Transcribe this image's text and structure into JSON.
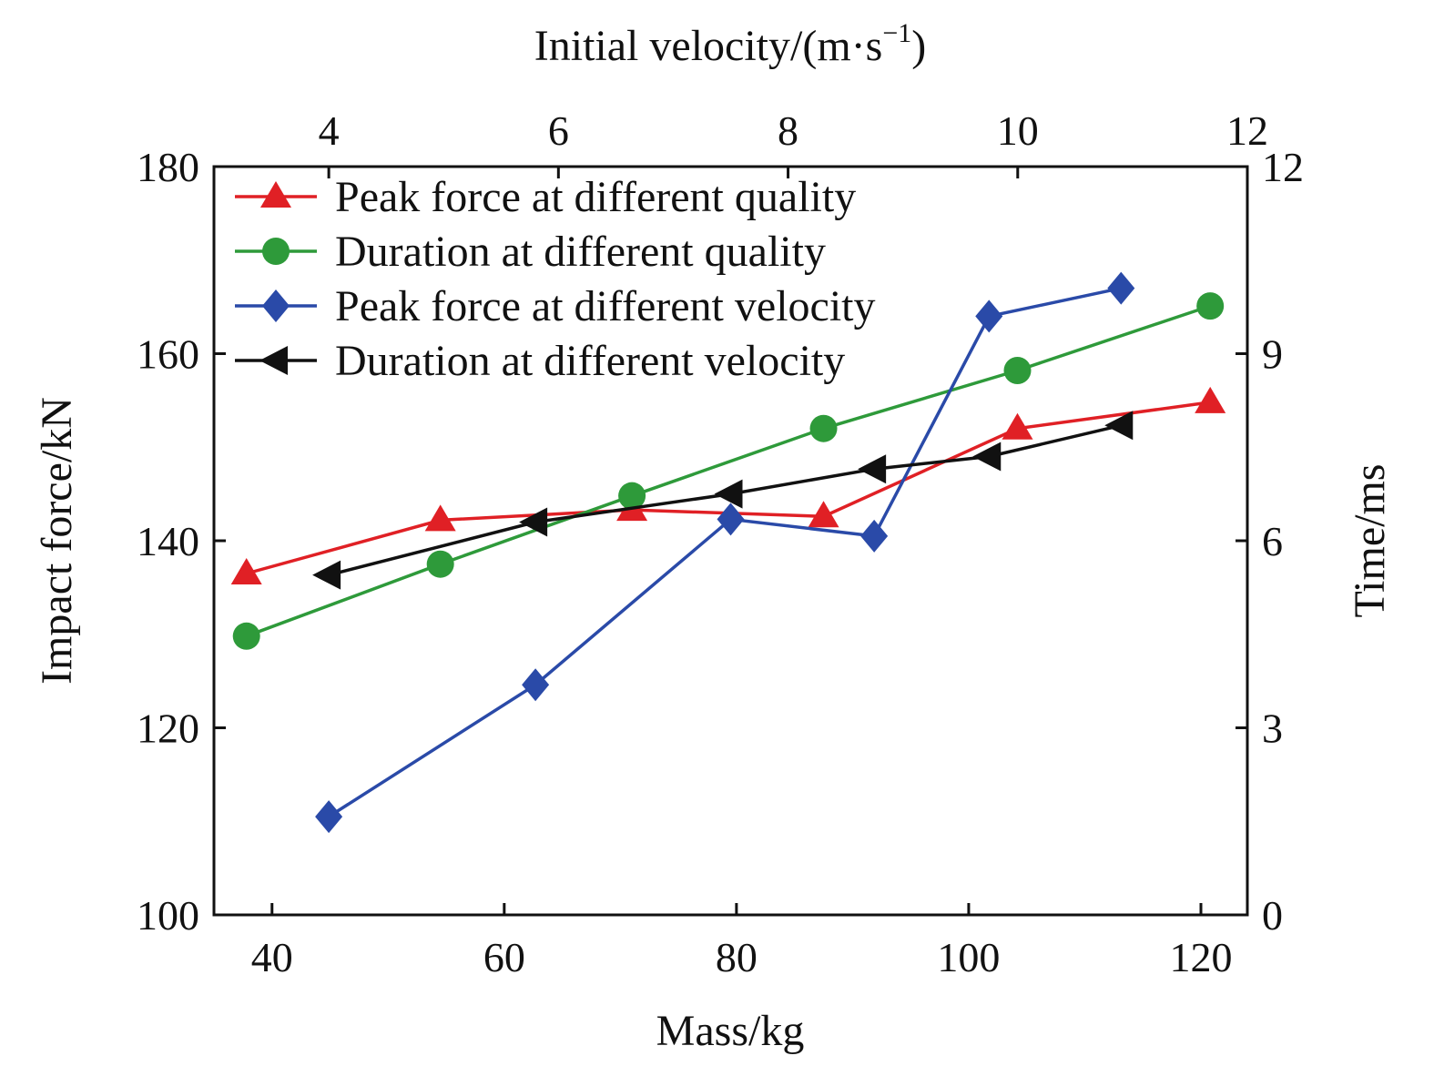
{
  "chart_data": {
    "type": "line",
    "xlabel_bottom": "Mass/kg",
    "xlabel_top": "Initial velocity/(m·s",
    "xlabel_top_exp": "−1",
    "xlabel_top_close": ")",
    "ylabel_left": "Impact force/kN",
    "ylabel_right": "Time/ms",
    "x_bottom": {
      "range": [
        35,
        124
      ],
      "ticks": [
        "40",
        "60",
        "80",
        "100",
        "120"
      ]
    },
    "x_top": {
      "range": [
        3.0,
        12.0
      ],
      "ticks": [
        "4",
        "6",
        "8",
        "10",
        "12"
      ]
    },
    "y_left": {
      "range": [
        100,
        180
      ],
      "ticks": [
        "100",
        "120",
        "140",
        "160",
        "180"
      ]
    },
    "y_right": {
      "range": [
        0,
        12
      ],
      "ticks": [
        "0",
        "3",
        "6",
        "9",
        "12"
      ]
    },
    "grid": false,
    "legend_position": "top-left",
    "series": [
      {
        "name": "Peak force at different quality",
        "color": "#e02025",
        "marker": "triangle-up",
        "x_axis": "bottom",
        "y_axis": "left",
        "x": [
          37.8,
          54.5,
          71.0,
          87.5,
          104.2,
          120.8
        ],
        "y": [
          136.5,
          142.2,
          143.3,
          142.6,
          152.0,
          154.8
        ]
      },
      {
        "name": "Duration at different quality",
        "color": "#2e9a3a",
        "marker": "circle",
        "x_axis": "bottom",
        "y_axis": "left",
        "x": [
          37.8,
          54.5,
          71.0,
          87.5,
          104.2,
          120.8
        ],
        "y": [
          129.8,
          137.5,
          144.8,
          152.0,
          158.2,
          165.1
        ]
      },
      {
        "name": "Peak force at different velocity",
        "color": "#2a4aa8",
        "marker": "diamond",
        "x_axis": "top",
        "y_axis": "left",
        "x": [
          4.0,
          5.8,
          7.5,
          8.75,
          9.75,
          10.9
        ],
        "y": [
          110.5,
          124.6,
          142.3,
          140.5,
          164.0,
          167.0
        ]
      },
      {
        "name": "Duration at different velocity",
        "color": "#111111",
        "marker": "triangle-left",
        "x_axis": "top",
        "y_axis": "right",
        "x": [
          4.0,
          5.8,
          7.5,
          8.75,
          9.75,
          10.9
        ],
        "y": [
          5.45,
          6.3,
          6.75,
          7.15,
          7.35,
          7.85
        ]
      }
    ]
  }
}
